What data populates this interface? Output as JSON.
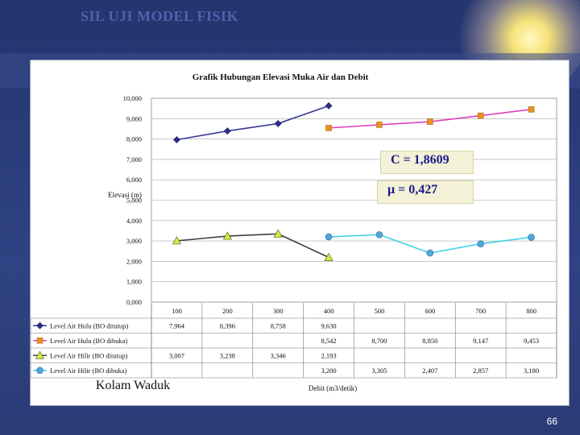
{
  "slide": {
    "title": "SIL UJI MODEL FISIK",
    "page_number": "66",
    "caption": "Kolam Waduk"
  },
  "callouts": {
    "c_value": "C = 1,8609",
    "mu_value": "μ = 0,427"
  },
  "chart_data": {
    "type": "line",
    "title": "Grafik Hubungan Elevasi Muka Air dan Debit",
    "xlabel": "Debit (m3/detik)",
    "ylabel": "Elevasi (m)",
    "ylim": [
      0,
      10
    ],
    "yticks": [
      "0,000",
      "1,000",
      "2,000",
      "3,000",
      "4,000",
      "5,000",
      "6,000",
      "7,000",
      "8,000",
      "9,000",
      "10,000"
    ],
    "categories": [
      "100",
      "200",
      "300",
      "400",
      "500",
      "600",
      "700",
      "800"
    ],
    "series": [
      {
        "name": "Level Air Hulu (BO ditutup)",
        "color": "#2e2e8f",
        "marker": "diamond",
        "line_color": "#3a3a9a",
        "values": [
          7.964,
          8.396,
          8.758,
          9.63,
          null,
          null,
          null,
          null
        ],
        "labels": [
          "7,964",
          "8,396",
          "8,758",
          "9,630",
          "",
          "",
          "",
          ""
        ]
      },
      {
        "name": "Level Air Hulu (BO dibuka)",
        "color": "#e8921e",
        "marker": "square",
        "line_color": "#e040c0",
        "values": [
          null,
          null,
          null,
          8.542,
          8.7,
          8.85,
          9.147,
          9.453
        ],
        "labels": [
          "",
          "",
          "",
          "8,542",
          "8,700",
          "8,850",
          "9,147",
          "9,453"
        ]
      },
      {
        "name": "Level Air Hilir (BO ditutup)",
        "color": "#d8e84a",
        "marker": "triangle",
        "line_color": "#404040",
        "values": [
          3.007,
          3.238,
          3.346,
          2.193,
          null,
          null,
          null,
          null
        ],
        "labels": [
          "3,007",
          "3,238",
          "3,346",
          "2,193",
          "",
          "",
          "",
          ""
        ]
      },
      {
        "name": "Level Air Hilir (BO dibuka)",
        "color": "#4fa8d8",
        "marker": "circle",
        "line_color": "#40d0e8",
        "values": [
          null,
          null,
          null,
          3.2,
          3.305,
          2.407,
          2.857,
          3.18
        ],
        "labels": [
          "",
          "",
          "",
          "3,200",
          "3,305",
          "2,407",
          "2,857",
          "3,180"
        ]
      }
    ],
    "grid": true,
    "legend": "table-below"
  }
}
